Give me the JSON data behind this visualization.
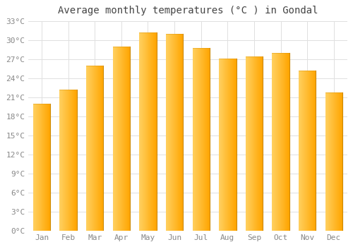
{
  "months": [
    "Jan",
    "Feb",
    "Mar",
    "Apr",
    "May",
    "Jun",
    "Jul",
    "Aug",
    "Sep",
    "Oct",
    "Nov",
    "Dec"
  ],
  "values": [
    20.0,
    22.2,
    26.0,
    29.0,
    31.3,
    31.0,
    28.8,
    27.2,
    27.5,
    28.0,
    25.2,
    21.8
  ],
  "bar_color_left": "#FFD060",
  "bar_color_right": "#FFA500",
  "bar_edge_color": "#CC8800",
  "title": "Average monthly temperatures (°C ) in Gondal",
  "ylim": [
    0,
    33
  ],
  "ytick_step": 3,
  "background_color": "#ffffff",
  "grid_color": "#e0e0e0",
  "title_fontsize": 10,
  "tick_fontsize": 8,
  "tick_color": "#888888"
}
